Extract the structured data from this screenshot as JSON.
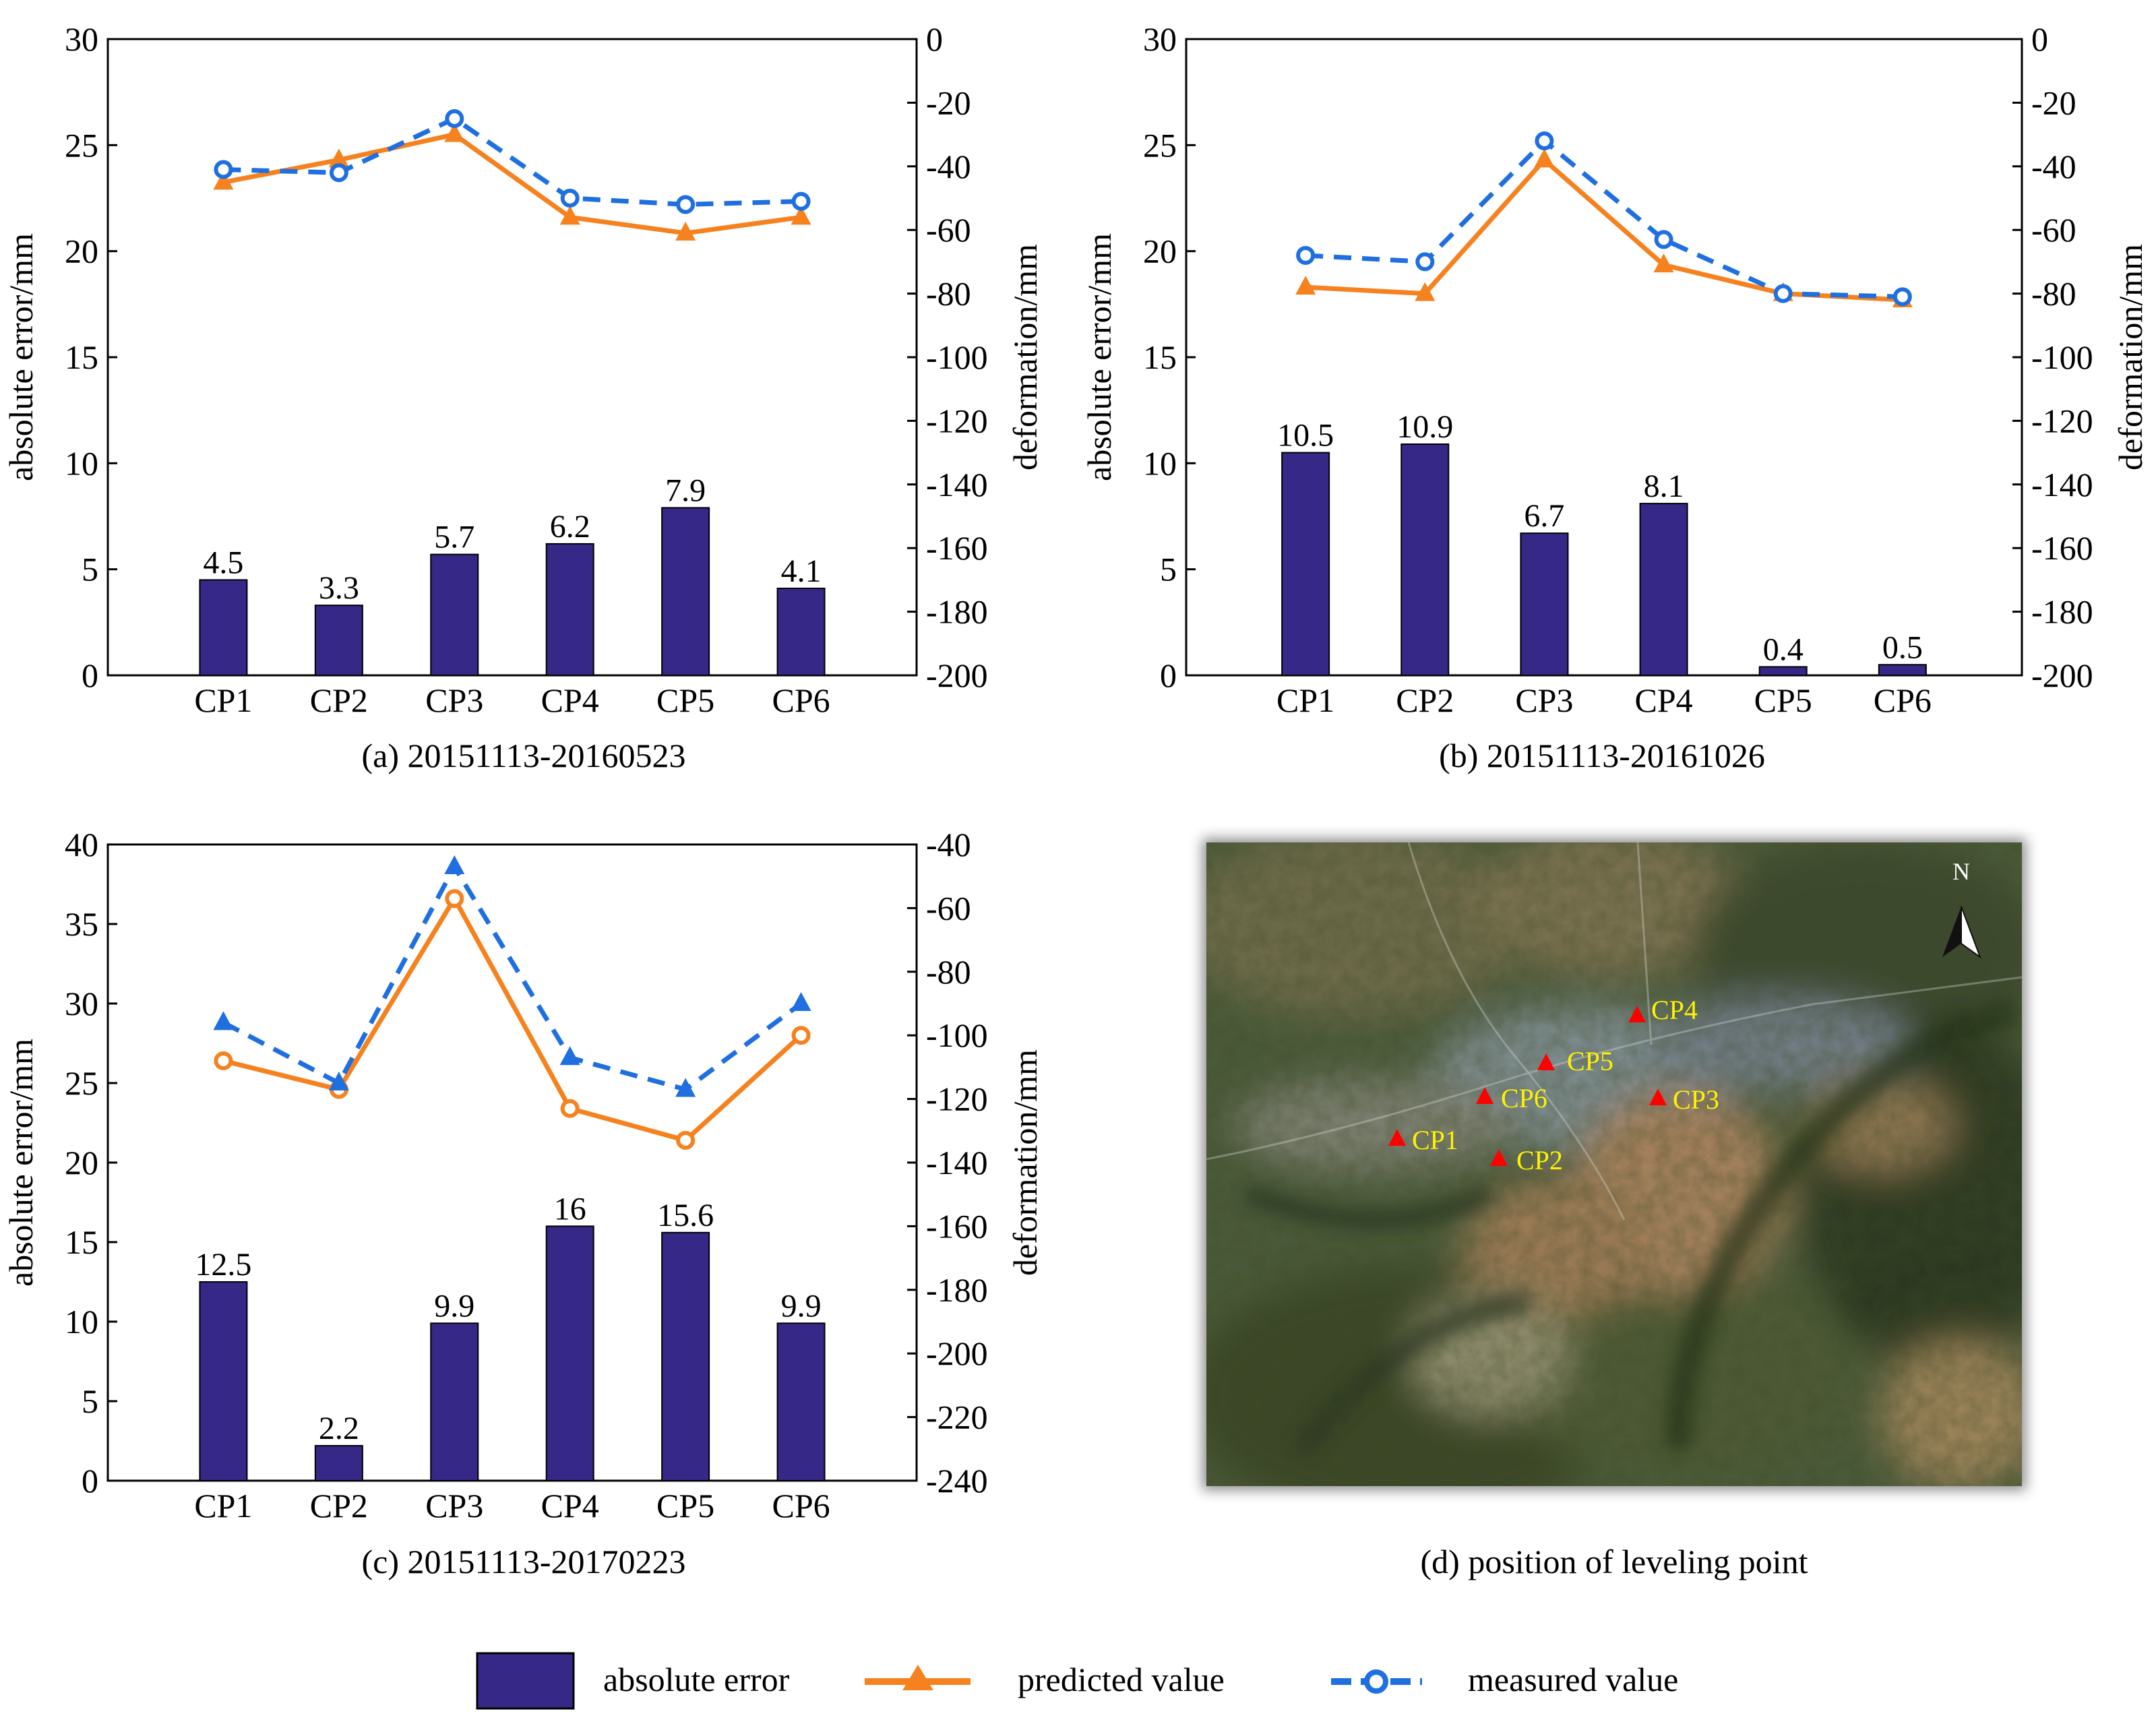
{
  "colors": {
    "bar": "#352887",
    "predicted": "#F5821F",
    "measured": "#1F6FE0",
    "map_label": "#FFF200",
    "map_marker": "#FF0000"
  },
  "legend": {
    "bar_label": "absolute error",
    "predicted_label": "predicted value",
    "measured_label": "measured value"
  },
  "chart_data": [
    {
      "type": "bar",
      "caption": "(a) 20151113-20160523",
      "categories": [
        "CP1",
        "CP2",
        "CP3",
        "CP4",
        "CP5",
        "CP6"
      ],
      "ylabel": "absolute error/mm",
      "y2label": "deformation/mm",
      "ylim": [
        0,
        30
      ],
      "yticks": [
        "0",
        "5",
        "10",
        "15",
        "20",
        "25",
        "30"
      ],
      "y2lim": [
        -200,
        0
      ],
      "y2ticks": [
        "-200",
        "-180",
        "-160",
        "-140",
        "-120",
        "-100",
        "-80",
        "-60",
        "-40",
        "-20",
        "0"
      ],
      "bars": {
        "name": "absolute error",
        "values": [
          4.5,
          3.3,
          5.7,
          6.2,
          7.9,
          4.1
        ],
        "labels": [
          "4.5",
          "3.3",
          "5.7",
          "6.2",
          "7.9",
          "4.1"
        ]
      },
      "series": [
        {
          "name": "predicted value",
          "axis": "right",
          "marker": "triangle",
          "style": "solid",
          "values": [
            -45,
            -38,
            -30,
            -56,
            -61,
            -56
          ]
        },
        {
          "name": "measured value",
          "axis": "right",
          "marker": "circle",
          "style": "dashed",
          "values": [
            -41,
            -42,
            -25,
            -50,
            -52,
            -51
          ]
        }
      ]
    },
    {
      "type": "bar",
      "caption": "(b) 20151113-20161026",
      "categories": [
        "CP1",
        "CP2",
        "CP3",
        "CP4",
        "CP5",
        "CP6"
      ],
      "ylabel": "absolute error/mm",
      "y2label": "deformation/mm",
      "ylim": [
        0,
        30
      ],
      "yticks": [
        "0",
        "5",
        "10",
        "15",
        "20",
        "25",
        "30"
      ],
      "y2lim": [
        -200,
        0
      ],
      "y2ticks": [
        "-200",
        "-180",
        "-160",
        "-140",
        "-120",
        "-100",
        "-80",
        "-60",
        "-40",
        "-20",
        "0"
      ],
      "bars": {
        "name": "absolute error",
        "values": [
          10.5,
          10.9,
          6.7,
          8.1,
          0.4,
          0.5
        ],
        "labels": [
          "10.5",
          "10.9",
          "6.7",
          "8.1",
          "0.4",
          "0.5"
        ]
      },
      "series": [
        {
          "name": "predicted value",
          "axis": "right",
          "marker": "triangle",
          "style": "solid",
          "values": [
            -78,
            -80,
            -38,
            -71,
            -80,
            -82
          ]
        },
        {
          "name": "measured value",
          "axis": "right",
          "marker": "circle",
          "style": "dashed",
          "values": [
            -68,
            -70,
            -32,
            -63,
            -80,
            -81
          ]
        }
      ]
    },
    {
      "type": "bar",
      "caption": "(c) 20151113-20170223",
      "categories": [
        "CP1",
        "CP2",
        "CP3",
        "CP4",
        "CP5",
        "CP6"
      ],
      "ylabel": "absolute error/mm",
      "y2label": "deformation/mm",
      "ylim": [
        0,
        40
      ],
      "yticks": [
        "0",
        "5",
        "10",
        "15",
        "20",
        "25",
        "30",
        "35",
        "40"
      ],
      "y2lim": [
        -240,
        -40
      ],
      "y2ticks": [
        "-240",
        "-220",
        "-200",
        "-180",
        "-160",
        "-140",
        "-120",
        "-100",
        "-80",
        "-60",
        "-40"
      ],
      "bars": {
        "name": "absolute error",
        "values": [
          12.5,
          2.2,
          9.9,
          16,
          15.6,
          9.9
        ],
        "labels": [
          "12.5",
          "2.2",
          "9.9",
          "16",
          "15.6",
          "9.9"
        ]
      },
      "series": [
        {
          "name": "predicted value",
          "axis": "right",
          "marker": "circle",
          "style": "solid",
          "values": [
            -108,
            -117,
            -57,
            -123,
            -133,
            -100
          ]
        },
        {
          "name": "measured value",
          "axis": "right",
          "marker": "triangle",
          "style": "dashed",
          "values": [
            -96,
            -115,
            -47,
            -107,
            -117,
            -90
          ]
        }
      ]
    }
  ],
  "map": {
    "caption": "(d)  position of leveling point",
    "north_label": "N",
    "points": [
      {
        "label": "CP1"
      },
      {
        "label": "CP2"
      },
      {
        "label": "CP3"
      },
      {
        "label": "CP4"
      },
      {
        "label": "CP5"
      },
      {
        "label": "CP6"
      }
    ]
  }
}
